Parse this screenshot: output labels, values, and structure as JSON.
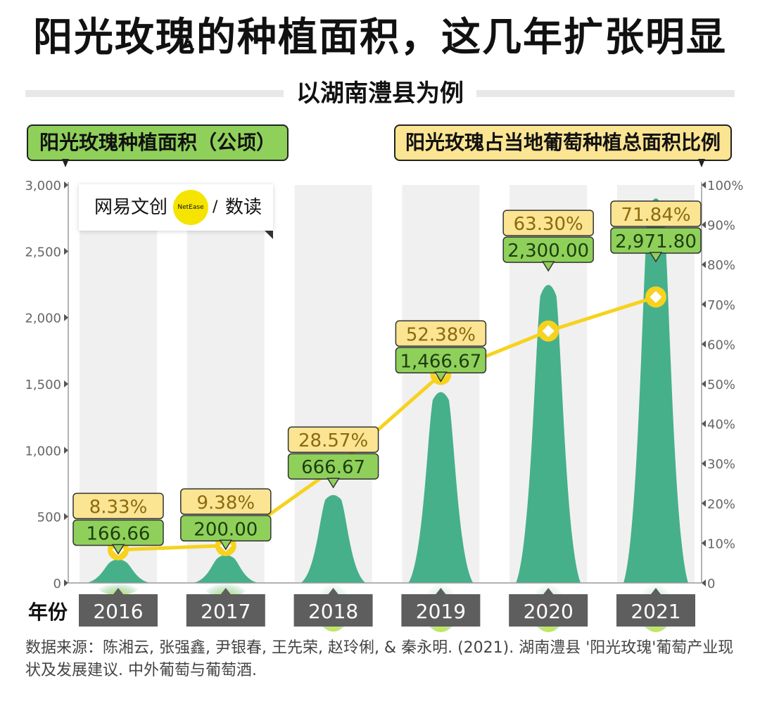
{
  "title": "阳光玫瑰的种植面积，这几年扩张明显",
  "subtitle": "以湖南澧县为例",
  "legend": {
    "left": "阳光玫瑰种植面积（公顷）",
    "right": "阳光玫瑰占当地葡萄种植总面积比例"
  },
  "logo": {
    "part_a": "网易文创",
    "badge": "NetEase",
    "slash": "/",
    "part_b": "数读"
  },
  "x_axis_title": "年份",
  "source": "数据来源：陈湘云, 张强鑫, 尹银春, 王先荣, 赵玲俐, & 秦永明. (2021). 湖南澧县 '阳光玫瑰'葡萄产业现状及发展建议. 中外葡萄与葡萄酒.",
  "colors": {
    "area": "#46b08a",
    "area_glow": "#c8e84a",
    "line": "#f7d21e",
    "green_label": "#8fd05a",
    "yellow_label": "#fbe492",
    "column_bg": "#f0f0f0",
    "year_box": "#5e5e5e"
  },
  "chart_data": {
    "type": "area",
    "categories": [
      "2016",
      "2017",
      "2018",
      "2019",
      "2020",
      "2021"
    ],
    "series": [
      {
        "name": "阳光玫瑰种植面积（公顷）",
        "axis": "left",
        "values": [
          166.66,
          200.0,
          666.67,
          1466.67,
          2300.0,
          2971.8
        ],
        "labels": [
          "166.66",
          "200.00",
          "666.67",
          "1,466.67",
          "2,300.00",
          "2,971.80"
        ]
      },
      {
        "name": "阳光玫瑰占当地葡萄种植总面积比例",
        "axis": "right",
        "type": "line",
        "values": [
          8.33,
          9.38,
          28.57,
          52.38,
          63.3,
          71.84
        ],
        "labels": [
          "8.33%",
          "9.38%",
          "28.57%",
          "52.38%",
          "63.30%",
          "71.84%"
        ]
      }
    ],
    "y_left": {
      "ylim": [
        0,
        3000
      ],
      "ticks": [
        0,
        500,
        1000,
        1500,
        2000,
        2500,
        3000
      ],
      "tick_labels": [
        "0",
        "500",
        "1,000",
        "1,500",
        "2,000",
        "2,500",
        "3,000"
      ]
    },
    "y_right": {
      "ylim": [
        0,
        100
      ],
      "ticks": [
        0,
        10,
        20,
        30,
        40,
        50,
        60,
        70,
        80,
        90,
        100
      ],
      "tick_labels": [
        "0",
        "10%",
        "20%",
        "30%",
        "40%",
        "50%",
        "60%",
        "70%",
        "80%",
        "90%",
        "100%"
      ]
    }
  }
}
